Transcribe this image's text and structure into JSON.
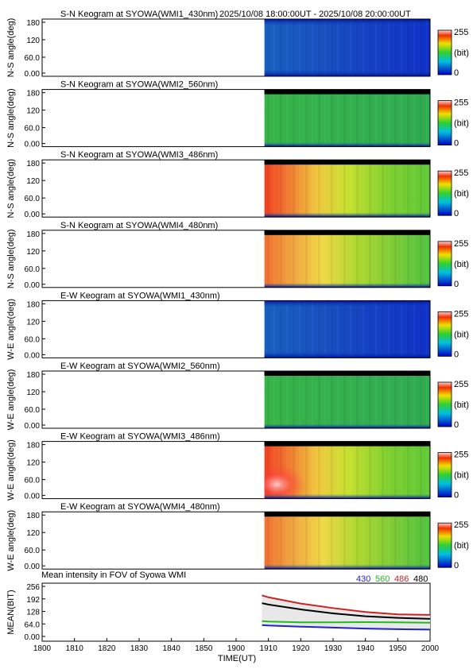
{
  "header": {
    "time_range": "2025/10/08 18:00:00UT - 2025/10/08 20:00:00UT"
  },
  "colorbar": {
    "max_label": "255",
    "unit_label": "(bit)",
    "min_label": "0"
  },
  "keogram_ticks": [
    "180",
    "120",
    "60.0",
    "0.00"
  ],
  "keograms": [
    {
      "title": "S-N Keogram at SYOWA(WMI1_430nm)",
      "ylabel": "N-S angle(deg)",
      "channel": "430"
    },
    {
      "title": "S-N Keogram at SYOWA(WMI2_560nm)",
      "ylabel": "N-S angle(deg)",
      "channel": "560"
    },
    {
      "title": "S-N Keogram at SYOWA(WMI3_486nm)",
      "ylabel": "N-S angle(deg)",
      "channel": "486"
    },
    {
      "title": "S-N Keogram at SYOWA(WMI4_480nm)",
      "ylabel": "N-S angle(deg)",
      "channel": "480"
    },
    {
      "title": "E-W Keogram at SYOWA(WMI1_430nm)",
      "ylabel": "W-E angle(deg)",
      "channel": "430"
    },
    {
      "title": "E-W Keogram at SYOWA(WMI2_560nm)",
      "ylabel": "W-E angle(deg)",
      "channel": "560"
    },
    {
      "title": "E-W Keogram at SYOWA(WMI3_486nm)",
      "ylabel": "W-E angle(deg)",
      "channel": "486"
    },
    {
      "title": "E-W Keogram at SYOWA(WMI4_480nm)",
      "ylabel": "W-E angle(deg)",
      "channel": "480"
    }
  ],
  "mean_panel": {
    "title": "Mean intensity in FOV of Syowa WMI",
    "ylabel": "MEAN(BIT)",
    "yticks": [
      "256",
      "192",
      "128",
      "64.0",
      "0.00"
    ],
    "legend": [
      {
        "label": "430",
        "color": "#2222cc"
      },
      {
        "label": "560",
        "color": "#22bb22"
      },
      {
        "label": "486",
        "color": "#cc2222"
      },
      {
        "label": "480",
        "color": "#000000"
      }
    ]
  },
  "xaxis": {
    "ticks": [
      "1800",
      "1810",
      "1820",
      "1830",
      "1840",
      "1850",
      "1900",
      "1910",
      "1920",
      "1930",
      "1940",
      "1950",
      "2000"
    ],
    "label": "TIME(UT)"
  },
  "chart_data": {
    "type": "line",
    "x": [
      "19:08",
      "19:10",
      "19:20",
      "19:30",
      "19:40",
      "19:50",
      "20:00"
    ],
    "ylim": [
      0,
      256
    ],
    "series": [
      {
        "name": "486",
        "color": "#cc2222",
        "values": [
          210,
          200,
          168,
          145,
          125,
          113,
          110
        ]
      },
      {
        "name": "480",
        "color": "#000000",
        "values": [
          170,
          163,
          138,
          118,
          103,
          95,
          90
        ]
      },
      {
        "name": "560",
        "color": "#22bb22",
        "values": [
          78,
          76,
          72,
          72,
          73,
          72,
          70
        ]
      },
      {
        "name": "430",
        "color": "#2222cc",
        "values": [
          58,
          56,
          50,
          45,
          40,
          37,
          35
        ]
      }
    ]
  }
}
